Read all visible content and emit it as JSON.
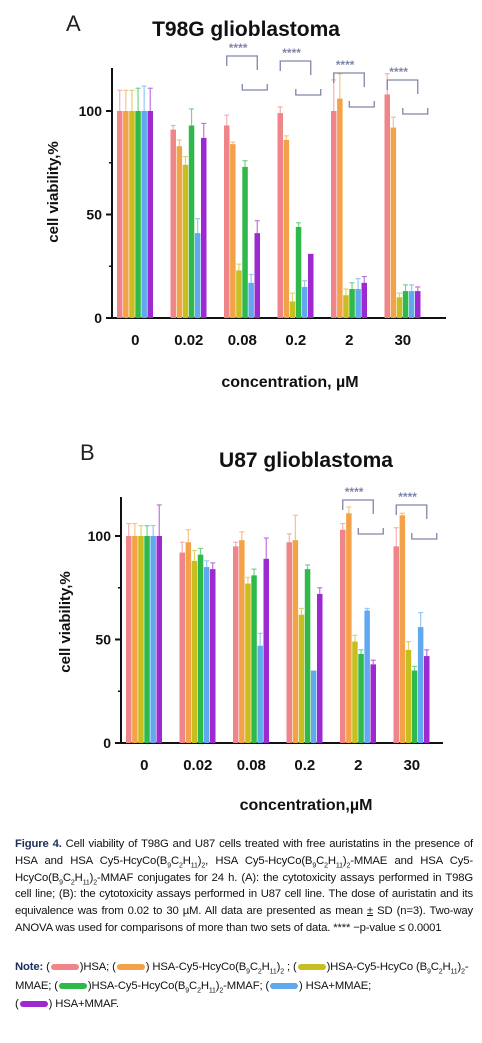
{
  "chart_data": [
    {
      "type": "bar",
      "panel_letter": "A",
      "title": "T98G glioblastoma",
      "xlabel": "concentration, µM",
      "ylabel": "cell viability,%",
      "ylim": [
        0,
        120
      ],
      "yticks": [
        "0",
        "50",
        "100"
      ],
      "categories": [
        "0",
        "0.02",
        "0.08",
        "0.2",
        "2",
        "30"
      ],
      "series": [
        {
          "values": [
            100,
            91,
            93,
            99,
            100,
            108
          ],
          "errors": [
            10,
            2,
            5,
            3,
            15,
            10
          ]
        },
        {
          "values": [
            100,
            83,
            84,
            86,
            106,
            92
          ],
          "errors": [
            10,
            3,
            1,
            2,
            12,
            5
          ]
        },
        {
          "values": [
            100,
            74,
            23,
            8,
            11,
            10
          ],
          "errors": [
            10,
            4,
            3,
            4,
            3,
            2
          ]
        },
        {
          "values": [
            100,
            93,
            73,
            44,
            14,
            13
          ],
          "errors": [
            11,
            8,
            3,
            2,
            3,
            3
          ]
        },
        {
          "values": [
            100,
            41,
            17,
            15,
            14,
            13
          ],
          "errors": [
            12,
            7,
            4,
            3,
            5,
            3
          ]
        },
        {
          "values": [
            100,
            87,
            41,
            31,
            17,
            13
          ],
          "errors": [
            11,
            7,
            6,
            0,
            3,
            2
          ]
        }
      ],
      "significance": [
        {
          "label": "****",
          "group": 2
        },
        {
          "label": "****",
          "group": 3
        },
        {
          "label": "****",
          "group": 4
        },
        {
          "label": "****",
          "group": 5
        }
      ],
      "grid": false
    },
    {
      "type": "bar",
      "panel_letter": "B",
      "title": "U87 glioblastoma",
      "xlabel": "concentration,µM",
      "ylabel": "cell viability,%",
      "ylim": [
        0,
        120
      ],
      "yticks": [
        "0",
        "50",
        "100"
      ],
      "categories": [
        "0",
        "0.02",
        "0.08",
        "0.2",
        "2",
        "30"
      ],
      "series": [
        {
          "values": [
            100,
            92,
            95,
            97,
            103,
            95
          ],
          "errors": [
            6,
            5,
            2,
            4,
            3,
            9
          ]
        },
        {
          "values": [
            100,
            97,
            98,
            98,
            111,
            110
          ],
          "errors": [
            6,
            6,
            4,
            12,
            3,
            1
          ]
        },
        {
          "values": [
            100,
            88,
            77,
            62,
            49,
            45
          ],
          "errors": [
            5,
            5,
            3,
            3,
            3,
            4
          ]
        },
        {
          "values": [
            100,
            91,
            81,
            84,
            43,
            35
          ],
          "errors": [
            5,
            3,
            3,
            2,
            2,
            2
          ]
        },
        {
          "values": [
            100,
            85,
            47,
            35,
            64,
            56
          ],
          "errors": [
            5,
            3,
            6,
            0,
            1,
            7
          ]
        },
        {
          "values": [
            100,
            84,
            89,
            72,
            38,
            42
          ],
          "errors": [
            15,
            3,
            10,
            3,
            2,
            3
          ]
        }
      ],
      "significance": [
        {
          "label": "****",
          "group": 4
        },
        {
          "label": "****",
          "group": 5
        }
      ],
      "grid": false
    }
  ],
  "colors": [
    "#ef8589",
    "#f3a24a",
    "#c8be1f",
    "#2fb94a",
    "#61a9ef",
    "#9d29d1"
  ],
  "caption": {
    "label": "Figure 4.",
    "text_1": " Cell viability of T98G and U87 cells treated with free auristatins in the presence of HSA and HSA Cy5-HcyCo(B",
    "sub_b1": "9",
    "text_2": "C",
    "sub_c1": "2",
    "text_3": "H",
    "sub_h1": "11",
    "text_4": ")",
    "sub_n1": "2",
    "text_5": ", HSA Cy5-HcyCo(B",
    "sub_b2": "9",
    "text_6": "C",
    "sub_c2": "2",
    "text_7": "H",
    "sub_h2": "11",
    "text_8": ")",
    "sub_n2": "2",
    "text_9": "-MMAE and HSA Cy5-HcyCo(B",
    "sub_b3": "9",
    "text_10": "C",
    "sub_c3": "2",
    "text_11": "H",
    "sub_h3": "11",
    "text_12": ")",
    "sub_n3": "2",
    "text_13": "-MMAF conjugates for 24 h. (A): the cytotoxicity assays performed in T98G cell line; (B): the cytotoxicity assays performed in U87 cell line. The dose of auristatin and its equivalence was from 0.02 to 30 µM. All data are presented as mean ",
    "pm": "±",
    "text_14": " SD (n=3). Two-way ANOVA was used for comparisons of more than two sets of data. **** −p-value ≤ 0.0001"
  },
  "note": {
    "label": "Note:",
    "open": " (",
    "item1": ")HSA; (",
    "item2_a": ") HSA-Cy5-HcyCo(B",
    "item2_sb": "9",
    "item2_b": "C",
    "item2_sc": "2",
    "item2_c": "H",
    "item2_sh": "11",
    "item2_d": ")",
    "item2_sn": "2",
    "item2_e": " ; (",
    "item3_a": ")HSA-Cy5-HcyCo (B",
    "item3_sb": "9",
    "item3_b": "C",
    "item3_sc": "2",
    "item3_c": "H",
    "item3_sh": "11",
    "item3_d": ")",
    "item3_sn": "2",
    "item3_e": "-MMAE; (",
    "item4_a": ")HSA-Cy5-HcyCo(B",
    "item4_sb": "9",
    "item4_b": "C",
    "item4_sc": "2",
    "item4_c": "H",
    "item4_sh": "11",
    "item4_d": ")",
    "item4_sn": "2",
    "item4_e": "-MMAF; (",
    "item5": ") HSA+MMAE;",
    "open2": "(",
    "item6": ") HSA+MMAF."
  }
}
